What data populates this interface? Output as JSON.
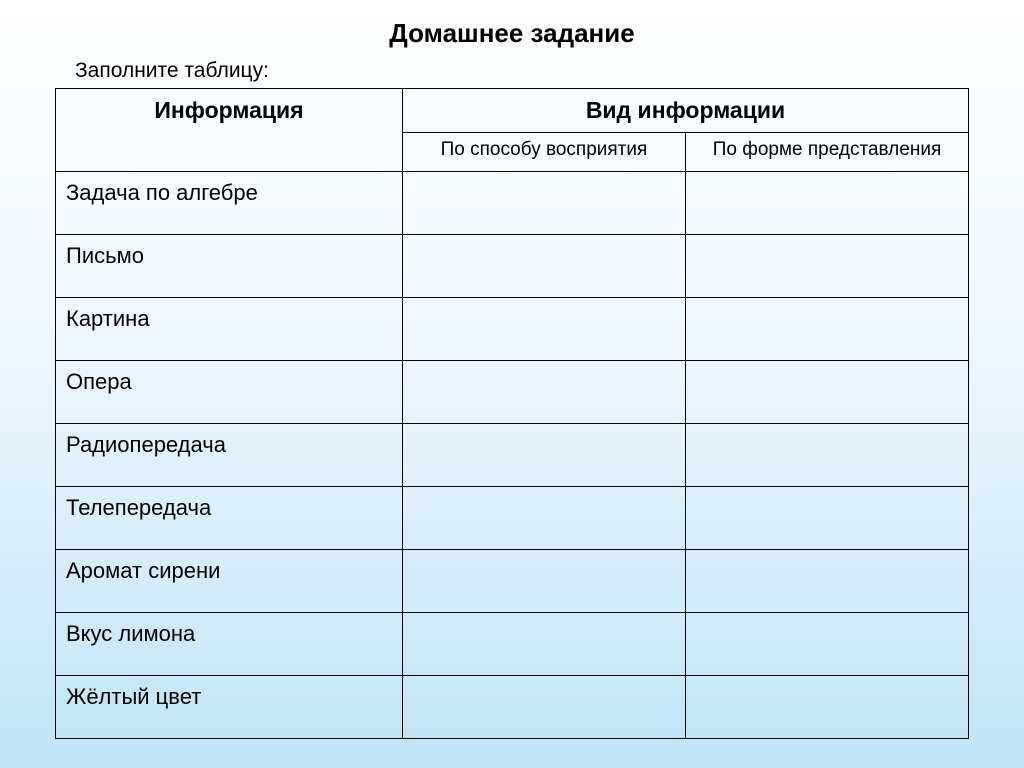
{
  "title": "Домашнее задание",
  "instruction": "Заполните таблицу:",
  "table": {
    "columns": {
      "main": [
        "Информация",
        "Вид информации"
      ],
      "sub": [
        "По способу восприятия",
        "По форме представления"
      ]
    },
    "rows": [
      {
        "label": "Задача по алгебре",
        "perception": "",
        "presentation": ""
      },
      {
        "label": "Письмо",
        "perception": "",
        "presentation": ""
      },
      {
        "label": "Картина",
        "perception": "",
        "presentation": ""
      },
      {
        "label": "Опера",
        "perception": "",
        "presentation": ""
      },
      {
        "label": "Радиопередача",
        "perception": "",
        "presentation": ""
      },
      {
        "label": "Телепередача",
        "perception": "",
        "presentation": ""
      },
      {
        "label": "Аромат сирени",
        "perception": "",
        "presentation": ""
      },
      {
        "label": "Вкус лимона",
        "perception": "",
        "presentation": ""
      },
      {
        "label": "Жёлтый цвет",
        "perception": "",
        "presentation": ""
      }
    ],
    "border_color": "#000000",
    "title_fontsize": 26,
    "instruction_fontsize": 21,
    "header_fontsize": 23,
    "subheader_fontsize": 19,
    "cell_fontsize": 22,
    "background_gradient": [
      "#ffffff",
      "#f0f8ff",
      "#bfe4f5"
    ]
  }
}
